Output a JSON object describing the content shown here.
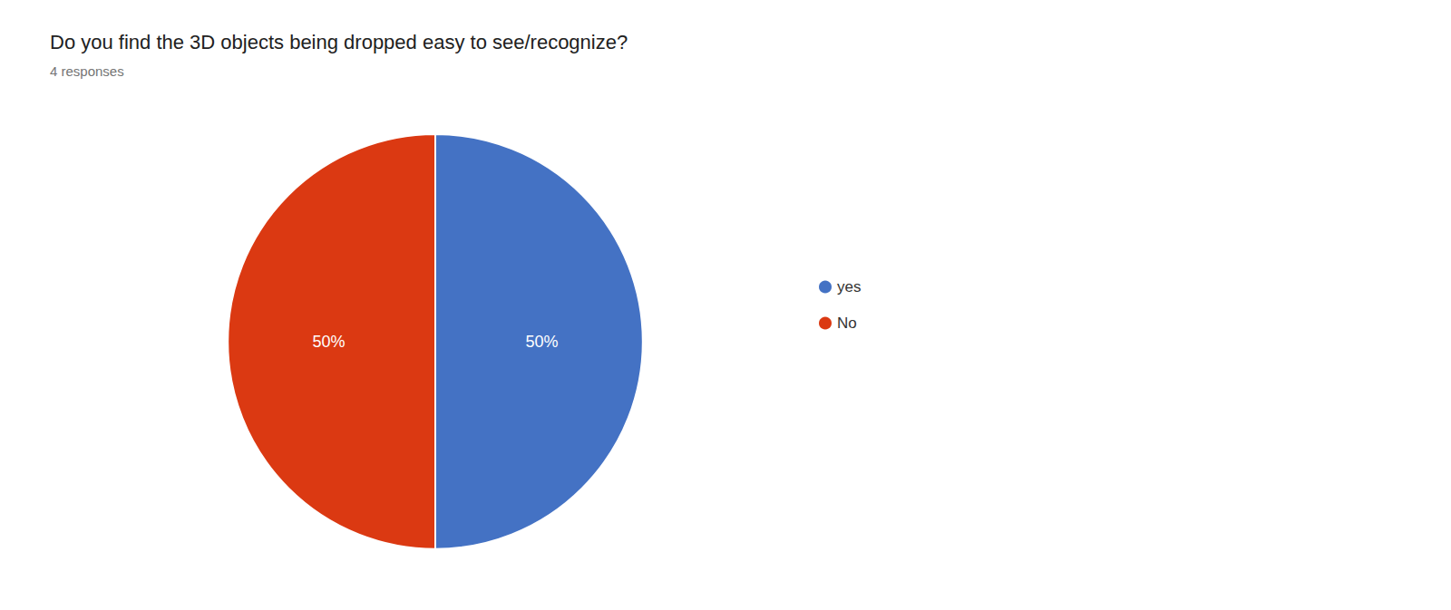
{
  "chart_data": {
    "type": "pie",
    "title": "Do you find the 3D objects being dropped easy to see/recognize?",
    "subtitle": "4 responses",
    "categories": [
      "yes",
      "No"
    ],
    "values": [
      50,
      50
    ],
    "value_labels": [
      "50%",
      "50%"
    ],
    "colors": [
      "#4472C4",
      "#DB3912"
    ],
    "data_labels": true,
    "legend": "right"
  }
}
